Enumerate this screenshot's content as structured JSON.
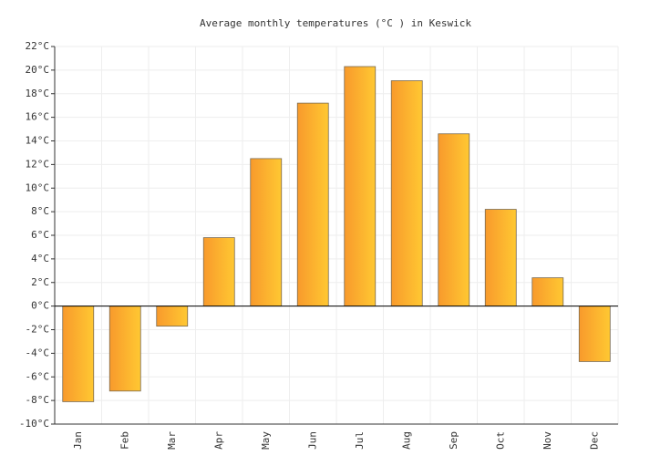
{
  "chart_data": {
    "type": "bar",
    "title": "Average monthly temperatures (°C ) in Keswick",
    "categories": [
      "Jan",
      "Feb",
      "Mar",
      "Apr",
      "May",
      "Jun",
      "Jul",
      "Aug",
      "Sep",
      "Oct",
      "Nov",
      "Dec"
    ],
    "values": [
      -8.1,
      -7.2,
      -1.7,
      5.8,
      12.5,
      17.2,
      20.3,
      19.1,
      14.6,
      8.2,
      2.4,
      -4.7
    ],
    "color": "#fbb02d",
    "ylim": [
      -10,
      22
    ],
    "yticks": [
      {
        "value": -10,
        "label": "-10°C"
      },
      {
        "value": -8,
        "label": "-8°C"
      },
      {
        "value": -6,
        "label": "-6°C"
      },
      {
        "value": -4,
        "label": "-4°C"
      },
      {
        "value": -2,
        "label": "-2°C"
      },
      {
        "value": 0,
        "label": "0°C"
      },
      {
        "value": 2,
        "label": "2°C"
      },
      {
        "value": 4,
        "label": "4°C"
      },
      {
        "value": 6,
        "label": "6°C"
      },
      {
        "value": 8,
        "label": "8°C"
      },
      {
        "value": 10,
        "label": "10°C"
      },
      {
        "value": 12,
        "label": "12°C"
      },
      {
        "value": 14,
        "label": "14°C"
      },
      {
        "value": 16,
        "label": "16°C"
      },
      {
        "value": 18,
        "label": "18°C"
      },
      {
        "value": 20,
        "label": "20°C"
      },
      {
        "value": 22,
        "label": "22°C"
      }
    ],
    "grid": true
  }
}
